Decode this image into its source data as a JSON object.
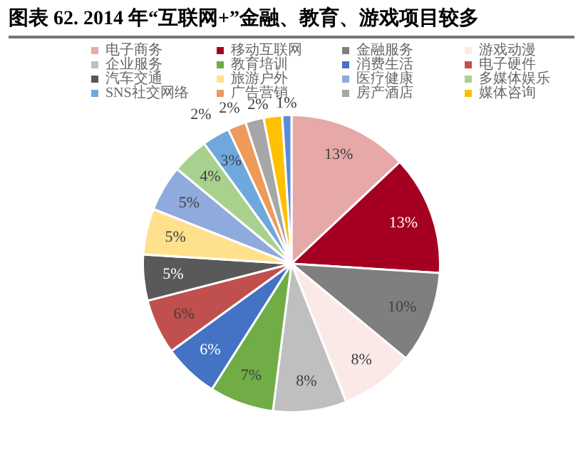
{
  "chart_data": {
    "type": "pie",
    "title": "图表 62. 2014 年“互联网+”金融、教育、游戏项目较多",
    "categories": [
      "电子商务",
      "移动互联网",
      "金融服务",
      "游戏动漫",
      "企业服务",
      "教育培训",
      "消费生活",
      "电子硬件",
      "汽车交通",
      "旅游户外",
      "医疗健康",
      "多媒体娱乐",
      "SNS社交网络",
      "广告营销",
      "房产酒店",
      "媒体咨询",
      null
    ],
    "values": [
      13,
      13,
      10,
      8,
      8,
      7,
      6,
      6,
      5,
      5,
      5,
      4,
      3,
      2,
      2,
      2,
      1
    ],
    "value_labels": [
      "13%",
      "13%",
      "10%",
      "8%",
      "8%",
      "7%",
      "6%",
      "6%",
      "5%",
      "5%",
      "5%",
      "4%",
      "3%",
      "2%",
      "2%",
      "2%",
      "1%"
    ],
    "colors": [
      "#e6a9a8",
      "#a50021",
      "#7f7f7f",
      "#fbe9e8",
      "#bfbfbf",
      "#70ad47",
      "#4472c4",
      "#c0504d",
      "#595959",
      "#ffe08c",
      "#8faadc",
      "#a9d18e",
      "#6fa8dc",
      "#ed9a5a",
      "#a6a6a6",
      "#ffc000",
      "#5b8bd6"
    ],
    "legend": "top"
  }
}
